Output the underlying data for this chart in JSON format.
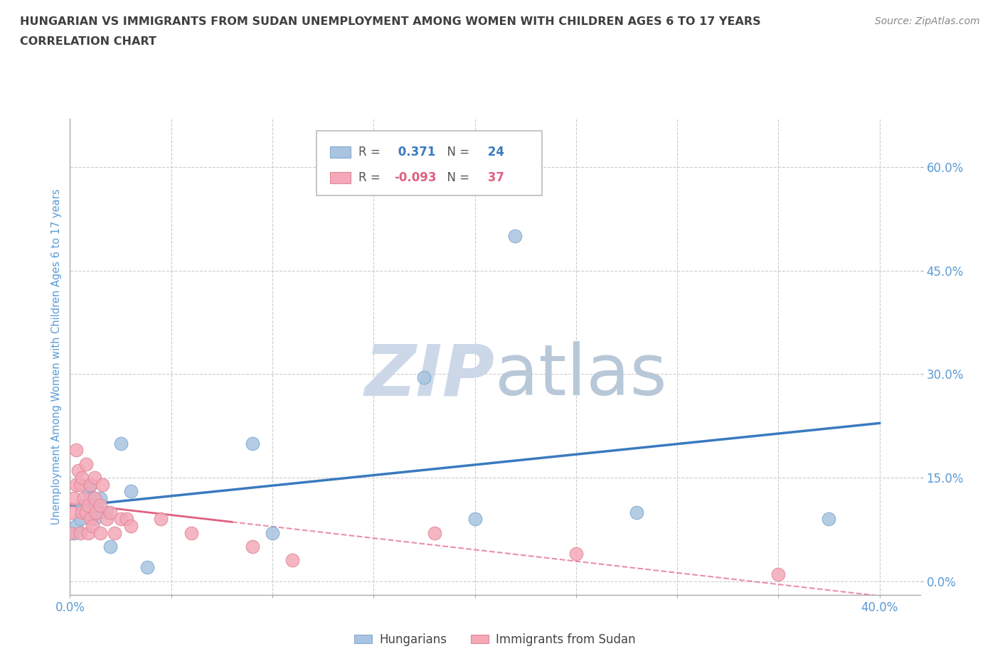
{
  "title_line1": "HUNGARIAN VS IMMIGRANTS FROM SUDAN UNEMPLOYMENT AMONG WOMEN WITH CHILDREN AGES 6 TO 17 YEARS",
  "title_line2": "CORRELATION CHART",
  "source_text": "Source: ZipAtlas.com",
  "ylabel": "Unemployment Among Women with Children Ages 6 to 17 years",
  "xlim": [
    0.0,
    0.42
  ],
  "ylim": [
    -0.02,
    0.67
  ],
  "yticks": [
    0.0,
    0.15,
    0.3,
    0.45,
    0.6
  ],
  "ytick_labels": [
    "0.0%",
    "15.0%",
    "30.0%",
    "45.0%",
    "60.0%"
  ],
  "xticks": [
    0.0,
    0.05,
    0.1,
    0.15,
    0.2,
    0.25,
    0.3,
    0.35,
    0.4
  ],
  "xtick_labels": [
    "0.0%",
    "",
    "",
    "",
    "",
    "",
    "",
    "",
    "40.0%"
  ],
  "hungarian_R": 0.371,
  "hungarian_N": 24,
  "sudan_R": -0.093,
  "sudan_N": 37,
  "hungarian_color": "#a8c4e0",
  "sudan_color": "#f4a8b8",
  "hungarian_line_color": "#3a7abf",
  "sudan_line_color": "#e06080",
  "background_color": "#ffffff",
  "grid_color": "#cccccc",
  "watermark_color": "#ccd8e8",
  "title_color": "#404040",
  "axis_label_color": "#5b9bd5",
  "tick_label_color": "#5b9bd5",
  "hungarian_x": [
    0.002,
    0.003,
    0.005,
    0.006,
    0.008,
    0.009,
    0.01,
    0.01,
    0.011,
    0.012,
    0.013,
    0.015,
    0.018,
    0.02,
    0.025,
    0.03,
    0.038,
    0.09,
    0.1,
    0.175,
    0.2,
    0.22,
    0.28,
    0.375
  ],
  "hungarian_y": [
    0.07,
    0.08,
    0.09,
    0.11,
    0.1,
    0.13,
    0.12,
    0.14,
    0.1,
    0.09,
    0.11,
    0.12,
    0.1,
    0.05,
    0.2,
    0.13,
    0.02,
    0.2,
    0.07,
    0.295,
    0.09,
    0.5,
    0.1,
    0.09
  ],
  "sudan_x": [
    0.0,
    0.001,
    0.002,
    0.003,
    0.003,
    0.004,
    0.005,
    0.005,
    0.006,
    0.006,
    0.007,
    0.008,
    0.008,
    0.009,
    0.009,
    0.01,
    0.01,
    0.011,
    0.012,
    0.012,
    0.013,
    0.015,
    0.015,
    0.016,
    0.018,
    0.02,
    0.022,
    0.025,
    0.028,
    0.03,
    0.045,
    0.06,
    0.09,
    0.11,
    0.18,
    0.25,
    0.35
  ],
  "sudan_y": [
    0.07,
    0.1,
    0.12,
    0.14,
    0.19,
    0.16,
    0.14,
    0.07,
    0.1,
    0.15,
    0.12,
    0.17,
    0.1,
    0.07,
    0.11,
    0.09,
    0.14,
    0.08,
    0.12,
    0.15,
    0.1,
    0.07,
    0.11,
    0.14,
    0.09,
    0.1,
    0.07,
    0.09,
    0.09,
    0.08,
    0.09,
    0.07,
    0.05,
    0.03,
    0.07,
    0.04,
    0.01
  ]
}
